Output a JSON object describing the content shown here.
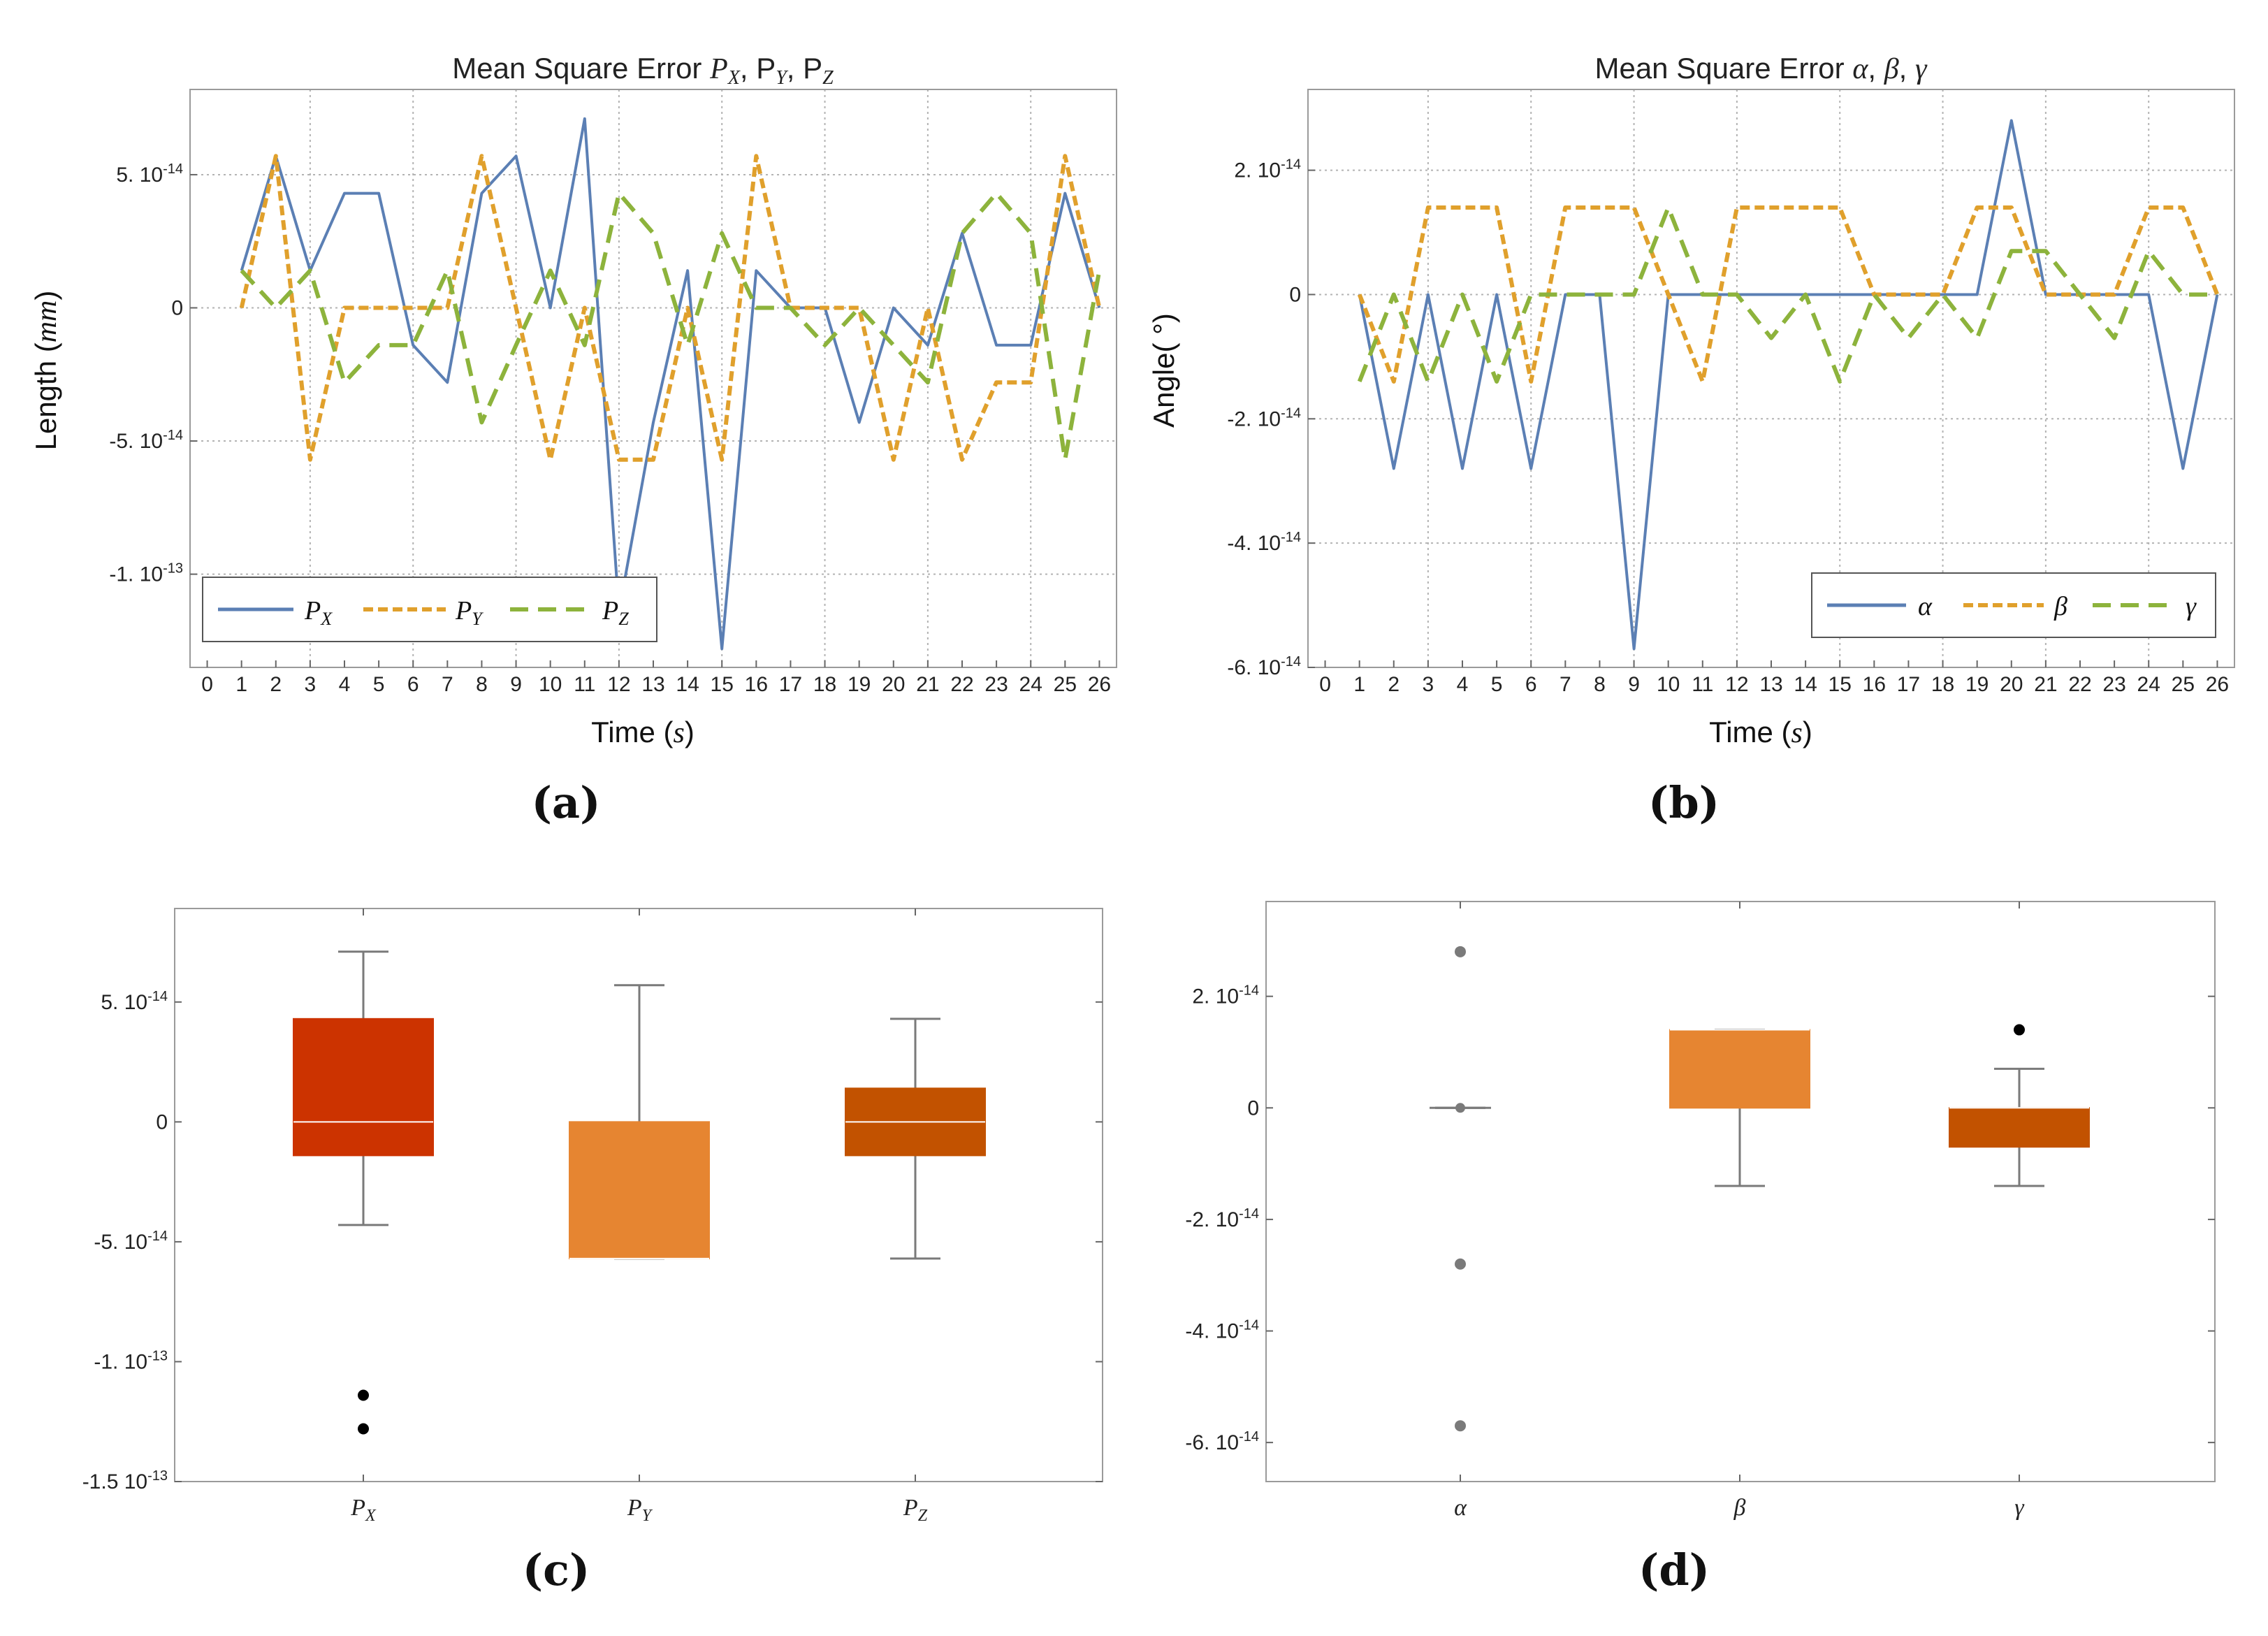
{
  "colors": {
    "px": "#5B7FB4",
    "py": "#E0A02C",
    "pz": "#8DB33C",
    "box_px": "#CC3300",
    "box_py": "#E68531",
    "box_pz": "#C25200",
    "grid": "#b3b3b3",
    "frame": "#9a9a9a"
  },
  "chart_data": [
    {
      "id": "a",
      "type": "line",
      "panel_label": "(a)",
      "title_prefix": "Mean Square Error ",
      "title_vars": [
        "P",
        "X",
        ", P",
        "Y",
        ", P",
        "Z"
      ],
      "xlabel_prefix": "Time (",
      "xlabel_var": "s",
      "xlabel_suffix": ")",
      "ylabel_prefix": "Length (",
      "ylabel_var": "mm",
      "ylabel_suffix": ")",
      "xlim": [
        -0.5,
        26.5
      ],
      "ylim": [
        -1.35e-13,
        8.2e-14
      ],
      "xticks": [
        "0",
        "1",
        "2",
        "3",
        "4",
        "5",
        "6",
        "7",
        "8",
        "9",
        "10",
        "11",
        "12",
        "13",
        "14",
        "15",
        "16",
        "17",
        "18",
        "19",
        "20",
        "21",
        "22",
        "23",
        "24",
        "25",
        "26"
      ],
      "yticks": [
        {
          "value": 5e-14,
          "mant": "5.",
          "exp": "-14"
        },
        {
          "value": 0,
          "mant": "0",
          "exp": ""
        },
        {
          "value": -5e-14,
          "mant": "-5.",
          "exp": "-14"
        },
        {
          "value": -1e-13,
          "mant": "-1.",
          "exp": "-13"
        }
      ],
      "legend_position": "bottom-left",
      "grid": true,
      "series": [
        {
          "name": "P",
          "sub": "X",
          "style": "solid",
          "x": [
            1,
            2,
            3,
            4,
            5,
            6,
            7,
            8,
            9,
            10,
            11,
            12,
            13,
            14,
            15,
            16,
            17,
            18,
            19,
            20,
            21,
            22,
            23,
            24,
            25,
            26
          ],
          "values": [
            1.4e-14,
            5.7e-14,
            1.4e-14,
            4.3e-14,
            4.3e-14,
            -1.4e-14,
            -2.8e-14,
            4.3e-14,
            5.7e-14,
            0,
            7.1e-14,
            -1.14e-13,
            -4.3e-14,
            1.4e-14,
            -1.28e-13,
            1.4e-14,
            0,
            0,
            -4.3e-14,
            0,
            -1.4e-14,
            2.8e-14,
            -1.4e-14,
            -1.4e-14,
            4.3e-14,
            0
          ]
        },
        {
          "name": "P",
          "sub": "Y",
          "style": "dashed",
          "x": [
            1,
            2,
            3,
            4,
            5,
            6,
            7,
            8,
            9,
            10,
            11,
            12,
            13,
            14,
            15,
            16,
            17,
            18,
            19,
            20,
            21,
            22,
            23,
            24,
            25,
            26
          ],
          "values": [
            0,
            5.7e-14,
            -5.7e-14,
            0,
            0,
            0,
            0,
            5.7e-14,
            0,
            -5.7e-14,
            0,
            -5.7e-14,
            -5.7e-14,
            0,
            -5.7e-14,
            5.7e-14,
            0,
            0,
            0,
            -5.7e-14,
            0,
            -5.7e-14,
            -2.8e-14,
            -2.8e-14,
            5.7e-14,
            0
          ]
        },
        {
          "name": "P",
          "sub": "Z",
          "style": "longdash",
          "x": [
            1,
            2,
            3,
            4,
            5,
            6,
            7,
            8,
            9,
            10,
            11,
            12,
            13,
            14,
            15,
            16,
            17,
            18,
            19,
            20,
            21,
            22,
            23,
            24,
            25,
            26
          ],
          "values": [
            1.4e-14,
            0,
            1.4e-14,
            -2.8e-14,
            -1.4e-14,
            -1.4e-14,
            1.4e-14,
            -4.3e-14,
            -1.4e-14,
            1.4e-14,
            -1.4e-14,
            4.3e-14,
            2.8e-14,
            -1.4e-14,
            2.8e-14,
            0,
            0,
            -1.4e-14,
            0,
            -1.4e-14,
            -2.8e-14,
            2.8e-14,
            4.3e-14,
            2.8e-14,
            -5.7e-14,
            1.4e-14
          ]
        }
      ]
    },
    {
      "id": "b",
      "type": "line",
      "panel_label": "(b)",
      "title_prefix": "Mean Square Error ",
      "title_vars": [
        "α",
        ", ",
        "β",
        ", ",
        "γ"
      ],
      "xlabel_prefix": "Time (",
      "xlabel_var": "s",
      "xlabel_suffix": ")",
      "ylabel_text": "Angle( °)",
      "xlim": [
        -0.5,
        26.5
      ],
      "ylim": [
        -6e-14,
        3.3e-14
      ],
      "xticks": [
        "0",
        "1",
        "2",
        "3",
        "4",
        "5",
        "6",
        "7",
        "8",
        "9",
        "10",
        "11",
        "12",
        "13",
        "14",
        "15",
        "16",
        "17",
        "18",
        "19",
        "20",
        "21",
        "22",
        "23",
        "24",
        "25",
        "26"
      ],
      "yticks": [
        {
          "value": 2e-14,
          "mant": "2.",
          "exp": "-14"
        },
        {
          "value": 0,
          "mant": "0",
          "exp": ""
        },
        {
          "value": -2e-14,
          "mant": "-2.",
          "exp": "-14"
        },
        {
          "value": -4e-14,
          "mant": "-4.",
          "exp": "-14"
        },
        {
          "value": -6e-14,
          "mant": "-6.",
          "exp": "-14"
        }
      ],
      "legend_position": "bottom-right",
      "grid": true,
      "series": [
        {
          "name": "α",
          "style": "solid",
          "x": [
            1,
            2,
            3,
            4,
            5,
            6,
            7,
            8,
            9,
            10,
            11,
            12,
            13,
            14,
            15,
            16,
            17,
            18,
            19,
            20,
            21,
            22,
            23,
            24,
            25,
            26
          ],
          "values": [
            0,
            -2.8e-14,
            0,
            -2.8e-14,
            0,
            -2.8e-14,
            0,
            0,
            -5.7e-14,
            0,
            0,
            0,
            0,
            0,
            0,
            0,
            0,
            0,
            0,
            2.8e-14,
            0,
            0,
            0,
            0,
            -2.8e-14,
            0
          ]
        },
        {
          "name": "β",
          "style": "dashed",
          "x": [
            1,
            2,
            3,
            4,
            5,
            6,
            7,
            8,
            9,
            10,
            11,
            12,
            13,
            14,
            15,
            16,
            17,
            18,
            19,
            20,
            21,
            22,
            23,
            24,
            25,
            26
          ],
          "values": [
            0,
            -1.4e-14,
            1.4e-14,
            1.4e-14,
            1.4e-14,
            -1.4e-14,
            1.4e-14,
            1.4e-14,
            1.4e-14,
            0,
            -1.4e-14,
            1.4e-14,
            1.4e-14,
            1.4e-14,
            1.4e-14,
            0,
            0,
            0,
            1.4e-14,
            1.4e-14,
            0,
            0,
            0,
            1.4e-14,
            1.4e-14,
            0
          ]
        },
        {
          "name": "γ",
          "style": "longdash",
          "x": [
            1,
            2,
            3,
            4,
            5,
            6,
            7,
            8,
            9,
            10,
            11,
            12,
            13,
            14,
            15,
            16,
            17,
            18,
            19,
            20,
            21,
            22,
            23,
            24,
            25,
            26
          ],
          "values": [
            -1.4e-14,
            0,
            -1.4e-14,
            0,
            -1.4e-14,
            0,
            0,
            0,
            0,
            1.4e-14,
            0,
            0,
            -7e-15,
            0,
            -1.4e-14,
            0,
            -7e-15,
            0,
            -7e-15,
            7e-15,
            7e-15,
            0,
            -7e-15,
            7e-15,
            0,
            0
          ]
        }
      ]
    },
    {
      "id": "c",
      "type": "box",
      "panel_label": "(c)",
      "ylim": [
        -1.5e-13,
        8.9e-14
      ],
      "yticks": [
        {
          "value": 5e-14,
          "mant": "5.",
          "exp": "-14"
        },
        {
          "value": 0,
          "mant": "0",
          "exp": ""
        },
        {
          "value": -5e-14,
          "mant": "-5.",
          "exp": "-14"
        },
        {
          "value": -1e-13,
          "mant": "-1.",
          "exp": "-13"
        },
        {
          "value": -1.5e-13,
          "mant": "-1.5",
          "exp": "-13"
        }
      ],
      "boxes": [
        {
          "name": "P",
          "sub": "X",
          "color": "#CC3300",
          "q1": -1.4e-14,
          "median": 0,
          "q3": 4.3e-14,
          "whisker_low": -4.3e-14,
          "whisker_high": 7.1e-14,
          "outliers": [
            -1.14e-13,
            -1.28e-13
          ],
          "outlier_color": "#000000"
        },
        {
          "name": "P",
          "sub": "Y",
          "color": "#E68531",
          "q1": -5.7e-14,
          "median": -5.7e-14,
          "q3": 0,
          "whisker_low": -5.7e-14,
          "whisker_high": 5.7e-14,
          "outliers": [],
          "outlier_color": "#000000"
        },
        {
          "name": "P",
          "sub": "Z",
          "color": "#C25200",
          "q1": -1.4e-14,
          "median": 0,
          "q3": 1.4e-14,
          "whisker_low": -5.7e-14,
          "whisker_high": 4.3e-14,
          "outliers": [],
          "outlier_color": "#000000"
        }
      ]
    },
    {
      "id": "d",
      "type": "box",
      "panel_label": "(d)",
      "ylim": [
        -6.7e-14,
        3.7e-14
      ],
      "yticks": [
        {
          "value": 2e-14,
          "mant": "2.",
          "exp": "-14"
        },
        {
          "value": 0,
          "mant": "0",
          "exp": ""
        },
        {
          "value": -2e-14,
          "mant": "-2.",
          "exp": "-14"
        },
        {
          "value": -4e-14,
          "mant": "-4.",
          "exp": "-14"
        },
        {
          "value": -6e-14,
          "mant": "-6.",
          "exp": "-14"
        }
      ],
      "boxes": [
        {
          "name": "α",
          "color": "#7a7a7a",
          "q1": 0,
          "median": 0,
          "q3": 0,
          "whisker_low": 0,
          "whisker_high": 0,
          "outliers": [
            2.8e-14,
            -2.8e-14,
            -5.7e-14
          ],
          "outlier_color": "#7a7a7a"
        },
        {
          "name": "β",
          "color": "#E68531",
          "q1": 0,
          "median": 1.4e-14,
          "q3": 1.4e-14,
          "whisker_low": -1.4e-14,
          "whisker_high": 1.4e-14,
          "outliers": [],
          "outlier_color": "#000000"
        },
        {
          "name": "γ",
          "color": "#C25200",
          "q1": -7e-15,
          "median": 0,
          "q3": 0,
          "whisker_low": -1.4e-14,
          "whisker_high": 7e-15,
          "outliers": [
            1.4e-14
          ],
          "outlier_color": "#000000"
        }
      ]
    }
  ]
}
